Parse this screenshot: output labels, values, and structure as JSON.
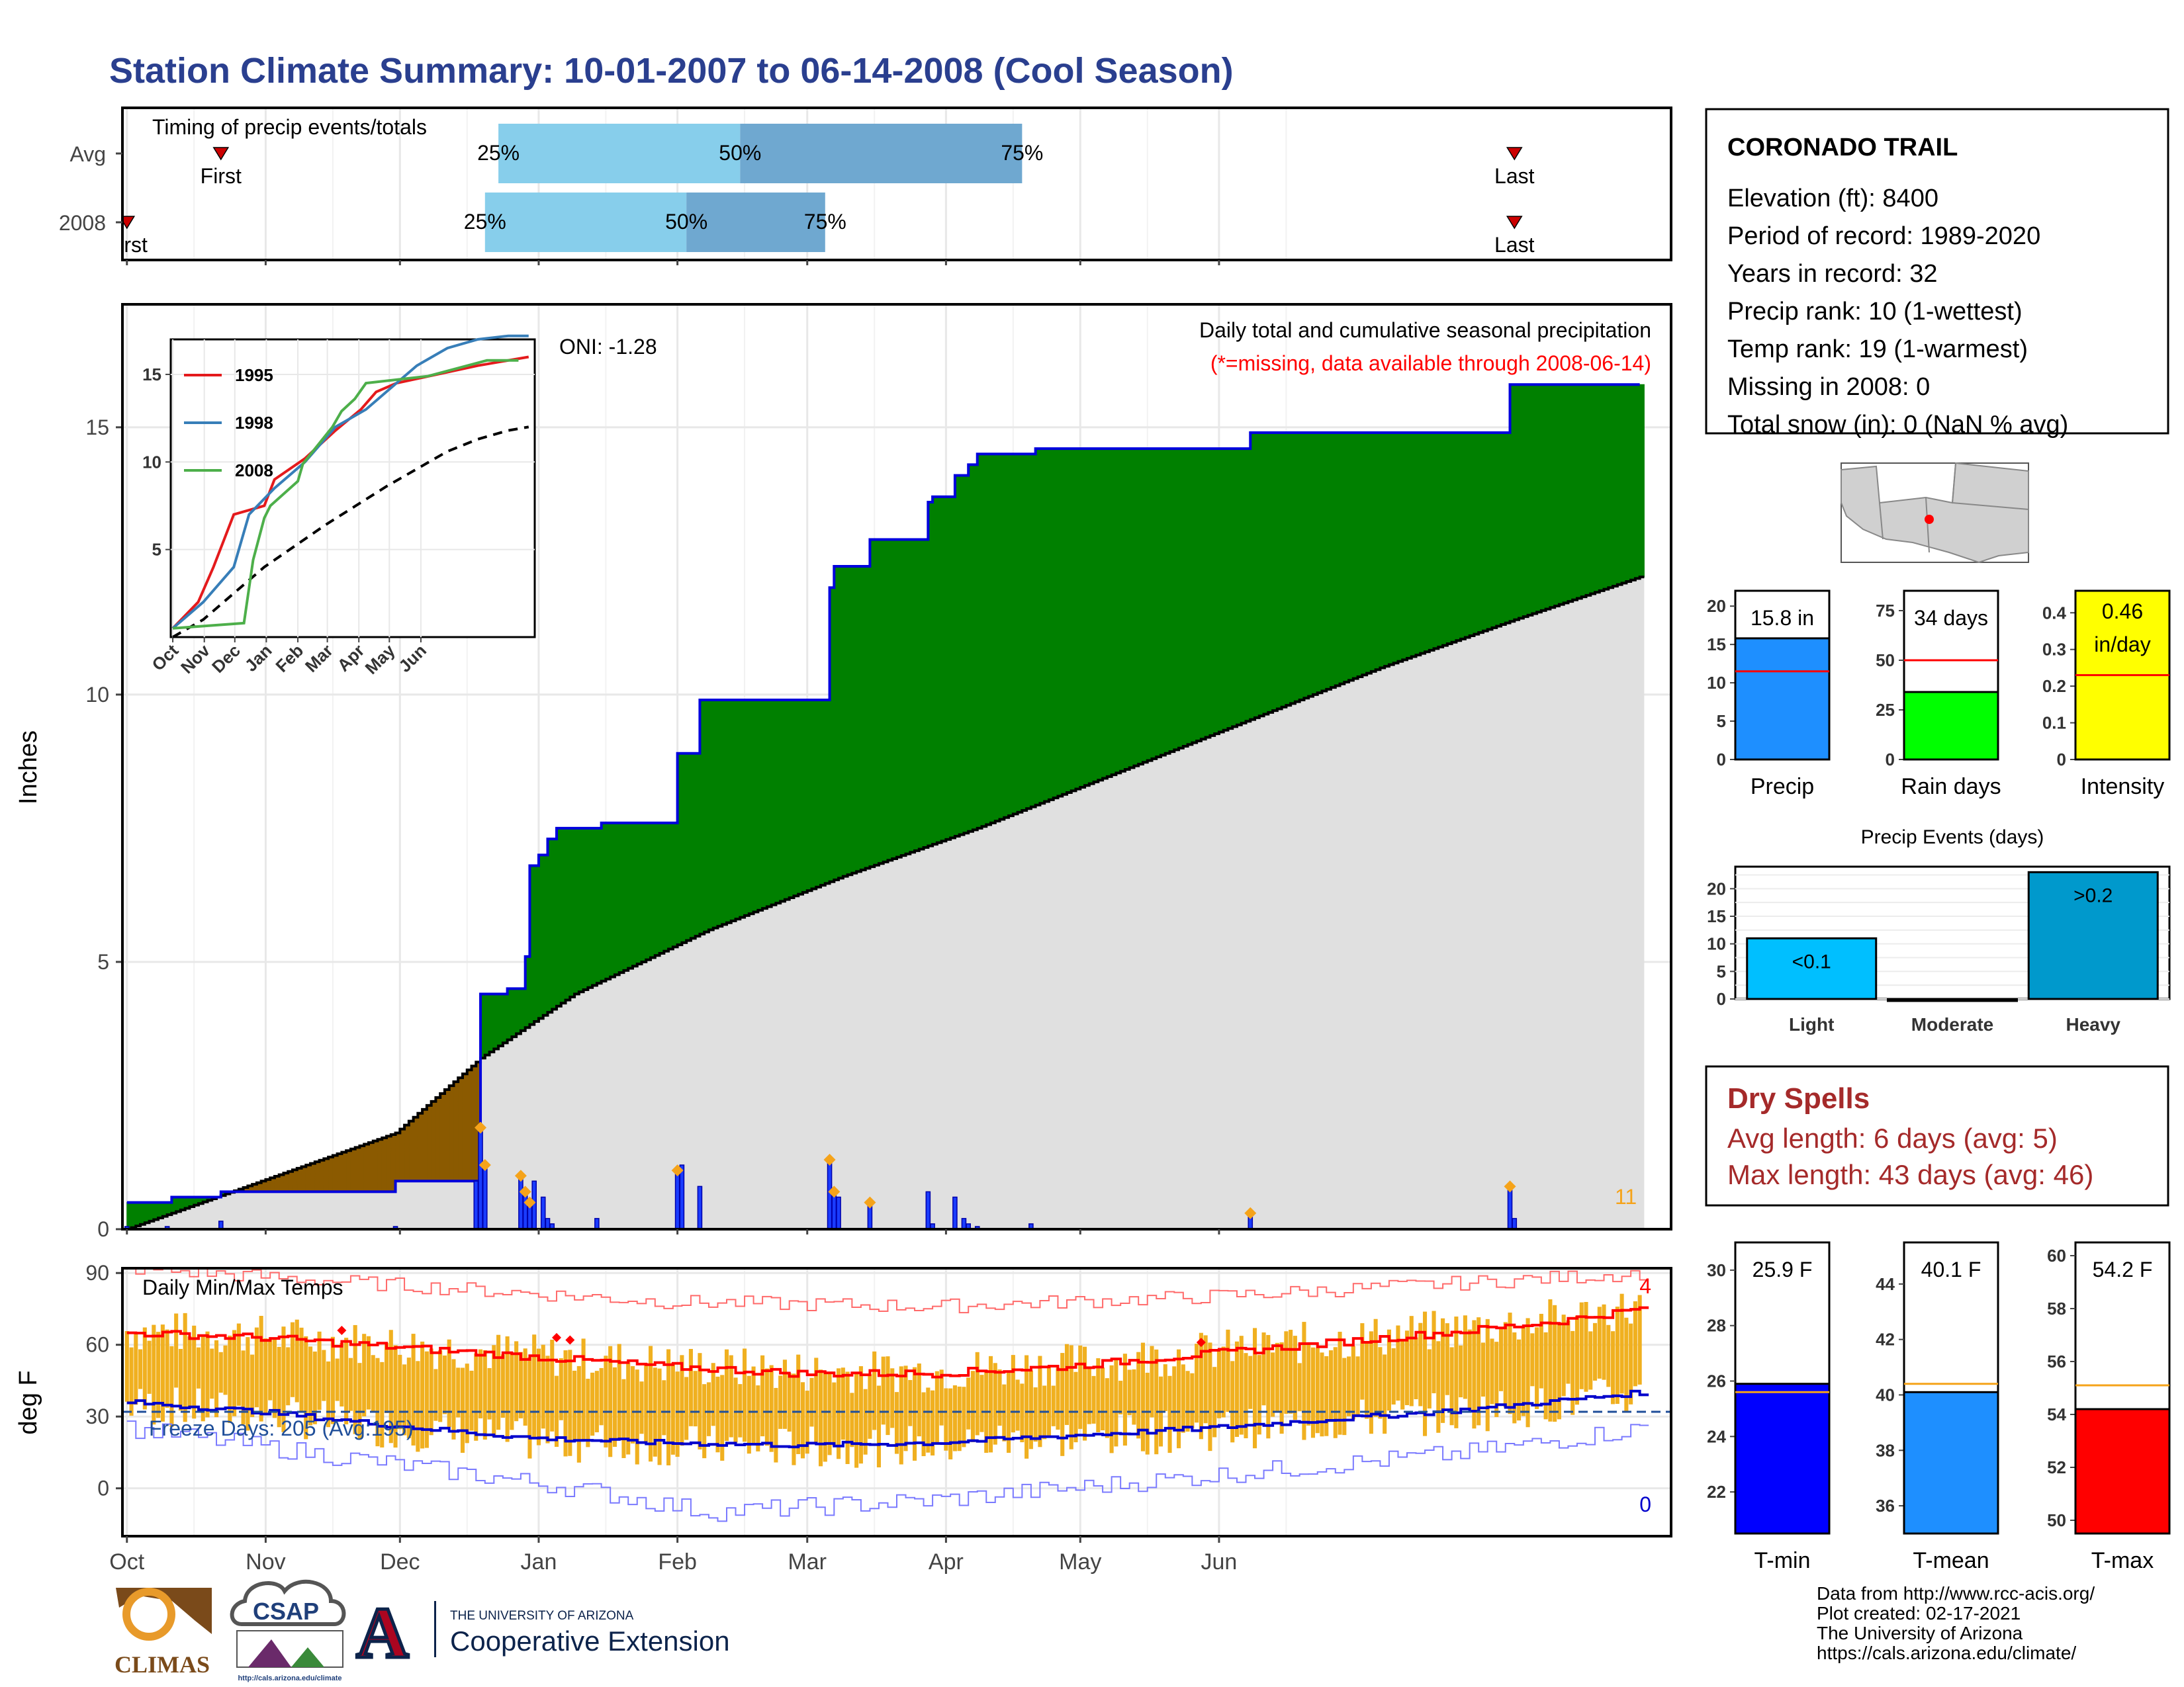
{
  "title": "Station Climate Summary: 10-01-2007 to 06-14-2008 (Cool Season)",
  "months": [
    "Oct",
    "Nov",
    "Dec",
    "Jan",
    "Feb",
    "Mar",
    "Apr",
    "May",
    "Jun"
  ],
  "timing": {
    "title": "Timing of precip events/totals",
    "rows": [
      {
        "label": "Avg",
        "first_label": "First",
        "last_label": "Last",
        "p25": "25%",
        "p50": "50%",
        "p75": "75%",
        "first_day": 21,
        "p25_day": 83,
        "p50_day": 137,
        "p75_day": 200,
        "last_day": 310
      },
      {
        "label": "2008",
        "first_label": "First",
        "last_label": "Last",
        "p25": "25%",
        "p50": "50%",
        "p75": "75%",
        "first_day": 0,
        "p25_day": 80,
        "p50_day": 125,
        "p75_day": 156,
        "last_day": 310
      }
    ]
  },
  "main": {
    "ylabel": "Inches",
    "heading": "Daily total and cumulative seasonal precipitation",
    "missing_note": "(*=missing, data available through 2008-06-14)",
    "oni": "ONI: -1.28",
    "count_label": "11",
    "yticks": [
      0,
      5,
      10,
      15
    ],
    "ylim": [
      0,
      17.3
    ]
  },
  "chart_data": [
    {
      "type": "area",
      "name": "Cumulative seasonal precipitation",
      "x_unit": "days since 10-01-2007",
      "cumulative_2008": [
        [
          0,
          0.5
        ],
        [
          10,
          0.6
        ],
        [
          20,
          0.6
        ],
        [
          21,
          0.7
        ],
        [
          55,
          0.7
        ],
        [
          60,
          0.9
        ],
        [
          78,
          0.9
        ],
        [
          79,
          4.4
        ],
        [
          84,
          4.4
        ],
        [
          85,
          4.5
        ],
        [
          88,
          4.5
        ],
        [
          89,
          5.1
        ],
        [
          90,
          6.8
        ],
        [
          92,
          7.0
        ],
        [
          94,
          7.3
        ],
        [
          96,
          7.5
        ],
        [
          105,
          7.5
        ],
        [
          106,
          7.6
        ],
        [
          122,
          7.6
        ],
        [
          123,
          8.9
        ],
        [
          127,
          8.9
        ],
        [
          128,
          9.9
        ],
        [
          156,
          9.9
        ],
        [
          157,
          12.0
        ],
        [
          158,
          12.4
        ],
        [
          165,
          12.4
        ],
        [
          166,
          12.9
        ],
        [
          178,
          12.9
        ],
        [
          179,
          13.6
        ],
        [
          180,
          13.7
        ],
        [
          184,
          13.7
        ],
        [
          185,
          14.1
        ],
        [
          188,
          14.3
        ],
        [
          190,
          14.5
        ],
        [
          202,
          14.5
        ],
        [
          203,
          14.6
        ],
        [
          250,
          14.6
        ],
        [
          251,
          14.9
        ],
        [
          308,
          14.9
        ],
        [
          309,
          15.8
        ],
        [
          338,
          15.8
        ]
      ],
      "average_cumulative": [
        [
          0,
          0.0
        ],
        [
          20,
          0.6
        ],
        [
          40,
          1.2
        ],
        [
          60,
          1.8
        ],
        [
          79,
          3.2
        ],
        [
          100,
          4.4
        ],
        [
          130,
          5.6
        ],
        [
          160,
          6.6
        ],
        [
          190,
          7.5
        ],
        [
          220,
          8.5
        ],
        [
          250,
          9.5
        ],
        [
          280,
          10.5
        ],
        [
          310,
          11.4
        ],
        [
          338,
          12.2
        ]
      ]
    },
    {
      "type": "bar",
      "name": "Daily precipitation (in)",
      "x_unit": "days since 10-01-2007",
      "days": [
        0,
        9,
        21,
        60,
        78,
        79,
        80,
        88,
        89,
        90,
        91,
        93,
        94,
        95,
        105,
        123,
        124,
        128,
        157,
        158,
        159,
        166,
        179,
        180,
        185,
        187,
        188,
        190,
        202,
        251,
        309,
        310
      ],
      "values": [
        0.05,
        0.05,
        0.15,
        0.05,
        0.9,
        1.9,
        1.2,
        1.0,
        0.7,
        0.5,
        0.9,
        0.6,
        0.2,
        0.1,
        0.2,
        1.1,
        1.2,
        0.8,
        1.3,
        0.7,
        0.6,
        0.5,
        0.7,
        0.1,
        0.6,
        0.2,
        0.1,
        0.05,
        0.1,
        0.3,
        0.8,
        0.2
      ],
      "missing_markers_days": [
        79,
        80,
        88,
        89,
        90,
        123,
        157,
        158,
        166,
        251,
        309
      ]
    },
    {
      "type": "line",
      "name": "Inset cumulative precipitation",
      "x_categories": [
        "Oct",
        "Nov",
        "Dec",
        "Jan",
        "Feb",
        "Mar",
        "Apr",
        "May",
        "Jun"
      ],
      "yticks": [
        5,
        10,
        15
      ],
      "ylim": [
        0,
        17
      ],
      "series": [
        {
          "name": "1995",
          "color": "#e41a1c",
          "points": [
            [
              0,
              0.5
            ],
            [
              25,
              2.0
            ],
            [
              40,
              4.0
            ],
            [
              50,
              5.5
            ],
            [
              60,
              7.0
            ],
            [
              90,
              7.5
            ],
            [
              100,
              9.0
            ],
            [
              130,
              10.2
            ],
            [
              160,
              11.8
            ],
            [
              185,
              13.0
            ],
            [
              200,
              14.0
            ],
            [
              220,
              14.5
            ],
            [
              260,
              15.0
            ],
            [
              300,
              15.5
            ],
            [
              330,
              15.8
            ],
            [
              350,
              16.0
            ]
          ]
        },
        {
          "name": "1998",
          "color": "#377eb8",
          "points": [
            [
              0,
              0.5
            ],
            [
              30,
              2.0
            ],
            [
              60,
              4.0
            ],
            [
              75,
              7.0
            ],
            [
              100,
              8.5
            ],
            [
              130,
              10.0
            ],
            [
              160,
              12.0
            ],
            [
              190,
              13.0
            ],
            [
              210,
              14.0
            ],
            [
              240,
              15.5
            ],
            [
              270,
              16.5
            ],
            [
              300,
              17.0
            ],
            [
              330,
              17.3
            ],
            [
              350,
              17.8
            ]
          ]
        },
        {
          "name": "2008",
          "color": "#4daf4a",
          "points": [
            [
              0,
              0.5
            ],
            [
              70,
              0.8
            ],
            [
              79,
              4.4
            ],
            [
              90,
              6.8
            ],
            [
              96,
              7.5
            ],
            [
              123,
              8.9
            ],
            [
              128,
              9.9
            ],
            [
              157,
              12.0
            ],
            [
              166,
              12.9
            ],
            [
              179,
              13.6
            ],
            [
              190,
              14.5
            ],
            [
              251,
              14.9
            ],
            [
              309,
              15.8
            ],
            [
              340,
              15.8
            ]
          ]
        }
      ],
      "avg_points": [
        [
          0,
          0
        ],
        [
          30,
          1.0
        ],
        [
          60,
          2.5
        ],
        [
          90,
          4.0
        ],
        [
          120,
          5.2
        ],
        [
          150,
          6.4
        ],
        [
          180,
          7.5
        ],
        [
          210,
          8.6
        ],
        [
          240,
          9.6
        ],
        [
          270,
          10.6
        ],
        [
          300,
          11.3
        ],
        [
          330,
          11.8
        ],
        [
          350,
          12.0
        ]
      ]
    },
    {
      "type": "bar",
      "name": "Daily Min/Max Temps",
      "title": "Daily Min/Max Temps",
      "ylabel": "deg F",
      "yticks": [
        0,
        30,
        60,
        90
      ],
      "ylim": [
        -20,
        92
      ],
      "freeze_label": "Freeze Days: 205 (Avg:195)",
      "freeze_threshold": 32,
      "record_high_count": "4",
      "record_low_count": "0",
      "avg_max_points": [
        [
          0,
          65
        ],
        [
          30,
          63
        ],
        [
          60,
          59
        ],
        [
          90,
          55
        ],
        [
          120,
          51
        ],
        [
          150,
          48
        ],
        [
          180,
          48
        ],
        [
          210,
          51
        ],
        [
          240,
          56
        ],
        [
          270,
          61
        ],
        [
          300,
          66
        ],
        [
          320,
          70
        ],
        [
          338,
          75
        ]
      ],
      "avg_min_points": [
        [
          0,
          36
        ],
        [
          30,
          32
        ],
        [
          60,
          26
        ],
        [
          90,
          21
        ],
        [
          120,
          19
        ],
        [
          150,
          18
        ],
        [
          180,
          19
        ],
        [
          210,
          22
        ],
        [
          240,
          25
        ],
        [
          270,
          29
        ],
        [
          300,
          33
        ],
        [
          338,
          40
        ]
      ],
      "record_max_points": [
        [
          0,
          92
        ],
        [
          60,
          85
        ],
        [
          120,
          78
        ],
        [
          180,
          76
        ],
        [
          240,
          80
        ],
        [
          300,
          86
        ],
        [
          338,
          90
        ]
      ],
      "record_min_points": [
        [
          0,
          25
        ],
        [
          60,
          10
        ],
        [
          100,
          0
        ],
        [
          130,
          -10
        ],
        [
          180,
          -5
        ],
        [
          240,
          5
        ],
        [
          300,
          15
        ],
        [
          338,
          25
        ]
      ]
    },
    {
      "type": "bar",
      "name": "Precip",
      "categories": [
        "Precip"
      ],
      "values": [
        15.8
      ],
      "average": 11.5,
      "label": "15.8 in",
      "yticks": [
        0,
        5,
        10,
        15,
        20
      ],
      "ylim": [
        0,
        22
      ]
    },
    {
      "type": "bar",
      "name": "Rain days",
      "categories": [
        "Rain days"
      ],
      "values": [
        34
      ],
      "average": 50,
      "label": "34 days",
      "yticks": [
        0,
        25,
        50,
        75
      ],
      "ylim": [
        0,
        85
      ]
    },
    {
      "type": "bar",
      "name": "Intensity",
      "categories": [
        "Intensity"
      ],
      "values": [
        0.46
      ],
      "average": 0.23,
      "label": "0.46 in/day",
      "yticks": [
        0.0,
        0.1,
        0.2,
        0.3,
        0.4
      ],
      "ylim": [
        0,
        0.46
      ]
    },
    {
      "type": "bar",
      "name": "Precip Events (days)",
      "title": "Precip Events (days)",
      "categories": [
        "Light",
        "Moderate",
        "Heavy"
      ],
      "values": [
        11,
        0,
        23
      ],
      "bar_labels": [
        "<0.1",
        "",
        ">0.2"
      ],
      "yticks": [
        0,
        5,
        10,
        15,
        20
      ],
      "ylim": [
        0,
        24
      ]
    },
    {
      "type": "bar",
      "name": "T-min",
      "categories": [
        "T-min"
      ],
      "values": [
        25.9
      ],
      "average": 25.6,
      "label": "25.9 F",
      "yticks": [
        22,
        24,
        26,
        28,
        30
      ],
      "ylim": [
        20.5,
        31
      ]
    },
    {
      "type": "bar",
      "name": "T-mean",
      "categories": [
        "T-mean"
      ],
      "values": [
        40.1
      ],
      "average": 40.4,
      "label": "40.1 F",
      "yticks": [
        36,
        38,
        40,
        42,
        44
      ],
      "ylim": [
        35,
        45.5
      ]
    },
    {
      "type": "bar",
      "name": "T-max",
      "categories": [
        "T-max"
      ],
      "values": [
        54.2
      ],
      "average": 55.1,
      "label": "54.2 F",
      "yticks": [
        50,
        52,
        54,
        56,
        58,
        60
      ],
      "ylim": [
        49.5,
        60.5
      ]
    }
  ],
  "station": {
    "name": "CORONADO TRAIL",
    "lines": [
      "Elevation (ft): 8400",
      "Period of record: 1989-2020",
      "Years in record: 32",
      "Precip rank: 10 (1-wettest)",
      "Temp rank: 19 (1-warmest)",
      "Missing in 2008: 0",
      "Total snow (in): 0 (NaN % avg)"
    ]
  },
  "dry_spells": {
    "title": "Dry Spells",
    "avg": "Avg length: 6 days (avg: 5)",
    "max": "Max length: 43 days (avg: 46)"
  },
  "footer": {
    "lines": [
      "Data from http://www.rcc-acis.org/",
      "Plot created: 02-17-2021",
      "The University of Arizona",
      "https://cals.arizona.edu/climate/"
    ],
    "climas": "CLIMAS",
    "csap": "CSAP",
    "csap_url": "http://cals.arizona.edu/climate",
    "ua_line1": "THE UNIVERSITY OF ARIZONA",
    "ua_line2": "Cooperative Extension",
    "ua_mark": "A"
  },
  "colors": {
    "title": "#2a3f8f",
    "green": "#008000",
    "brown": "#8b5a00",
    "blue_line": "#0000dd",
    "grey": "#e0e0e0",
    "orange": "#f5a31a",
    "red": "#ff0000",
    "dry": "#a52a2a"
  }
}
